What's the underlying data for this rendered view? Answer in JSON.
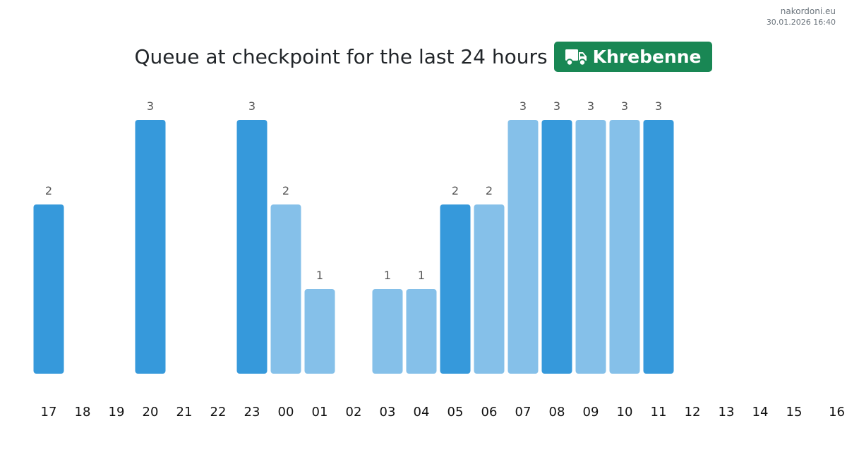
{
  "site": "nakordoni.eu",
  "timestamp": "30.01.2026 16:40",
  "title": "Queue at checkpoint for the last 24 hours",
  "checkpoint": {
    "name": "Khrebenne",
    "icon": "truck-icon",
    "color": "#198754"
  },
  "colors": {
    "bar_dark": "#3699db",
    "bar_light": "#85c0e9"
  },
  "chart_data": {
    "type": "bar",
    "title": "Queue at checkpoint for the last 24 hours",
    "xlabel": "",
    "ylabel": "",
    "categories": [
      "17",
      "18",
      "19",
      "20",
      "21",
      "22",
      "23",
      "00",
      "01",
      "02",
      "03",
      "04",
      "05",
      "06",
      "07",
      "08",
      "09",
      "10",
      "11",
      "12",
      "13",
      "14",
      "15",
      "16"
    ],
    "values": [
      2,
      0,
      0,
      3,
      0,
      0,
      3,
      2,
      1,
      0,
      1,
      1,
      2,
      2,
      3,
      3,
      3,
      3,
      3,
      null,
      null,
      null,
      null,
      null
    ],
    "shade": [
      "dark",
      null,
      null,
      "dark",
      null,
      null,
      "dark",
      "light",
      "light",
      null,
      "light",
      "light",
      "dark",
      "light",
      "light",
      "dark",
      "light",
      "light",
      "dark",
      null,
      null,
      null,
      null,
      null
    ],
    "ylim": [
      0,
      3
    ],
    "grid": false,
    "legend": "none"
  }
}
